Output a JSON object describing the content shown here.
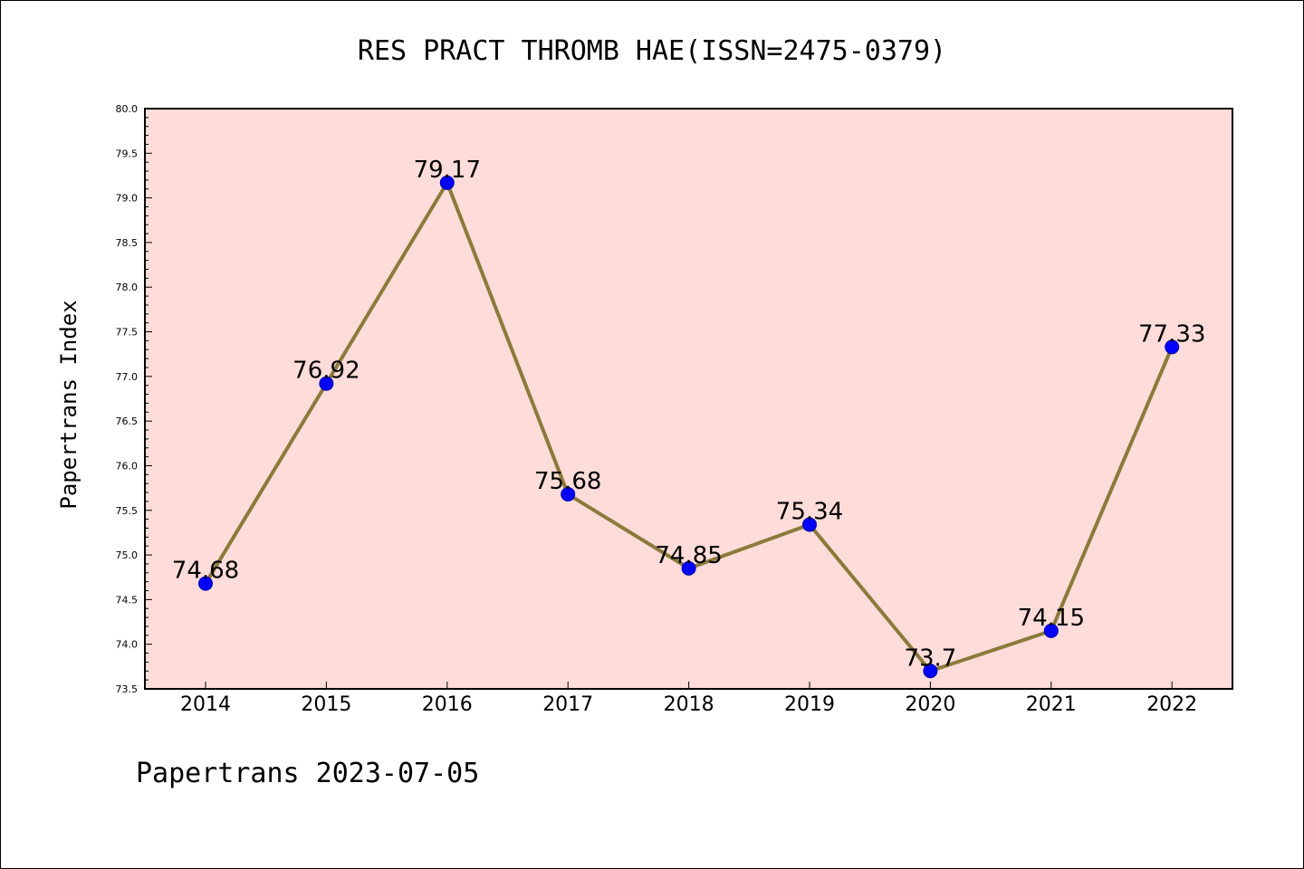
{
  "chart_data": {
    "type": "line",
    "title": "RES PRACT THROMB HAE(ISSN=2475-0379)",
    "ylabel": "Papertrans Index",
    "xlabel": "",
    "footer": "Papertrans 2023-07-05",
    "categories": [
      "2014",
      "2015",
      "2016",
      "2017",
      "2018",
      "2019",
      "2020",
      "2021",
      "2022"
    ],
    "values": [
      74.68,
      76.92,
      79.17,
      75.68,
      74.85,
      75.34,
      73.7,
      74.15,
      77.33
    ],
    "data_labels": [
      "74.68",
      "76.92",
      "79.17",
      "75.68",
      "74.85",
      "75.34",
      "73.7",
      "74.15",
      "77.33"
    ],
    "ylim": [
      73.5,
      80.0
    ],
    "yticks": [
      "73.5",
      "74.0",
      "74.5",
      "75.0",
      "75.5",
      "76.0",
      "76.5",
      "77.0",
      "77.5",
      "78.0",
      "78.5",
      "79.0",
      "79.5",
      "80.0"
    ],
    "grid": false,
    "colors": {
      "plot_background": "#fddcd9",
      "line": "#8b7a3a",
      "marker": "#0000ff"
    }
  }
}
